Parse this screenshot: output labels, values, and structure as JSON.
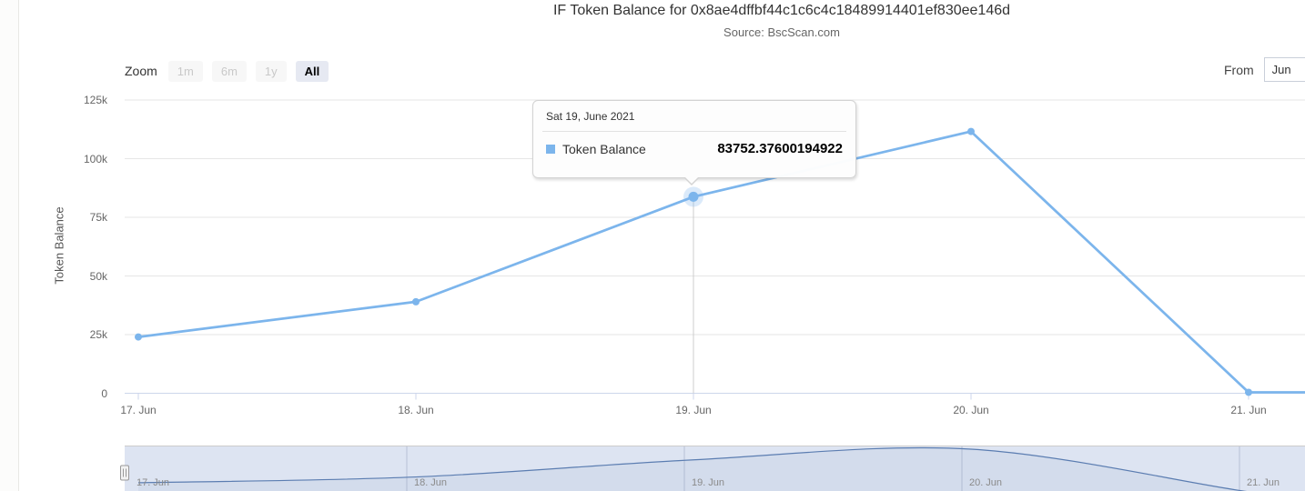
{
  "chart": {
    "title": "IF Token Balance for 0x8ae4dffbf44c1c6c4c18489914401ef830ee146d",
    "subtitle": "Source: BscScan.com",
    "yaxis_title": "Token Balance"
  },
  "range_selector": {
    "zoom_label": "Zoom",
    "buttons": [
      {
        "label": "1m",
        "state": "disabled"
      },
      {
        "label": "6m",
        "state": "disabled"
      },
      {
        "label": "1y",
        "state": "disabled"
      },
      {
        "label": "All",
        "state": "selected"
      }
    ],
    "from_label": "From",
    "from_value": "Jun"
  },
  "tooltip": {
    "header": "Sat 19, June 2021",
    "series_label": "Token Balance",
    "value": "83752.37600194922"
  },
  "chart_data": {
    "type": "line",
    "title": "IF Token Balance for 0x8ae4dffbf44c1c6c4c18489914401ef830ee146d",
    "subtitle": "Source: BscScan.com",
    "xlabel": "",
    "ylabel": "Token Balance",
    "x": [
      "17. Jun",
      "18. Jun",
      "19. Jun",
      "20. Jun",
      "21. Jun"
    ],
    "series": [
      {
        "name": "Token Balance",
        "values": [
          24000,
          39000,
          83752.37600194922,
          111600,
          400
        ]
      }
    ],
    "ylim": [
      0,
      125000
    ],
    "ytick_values": [
      0,
      25000,
      50000,
      75000,
      100000,
      125000
    ],
    "ytick_labels": [
      "0",
      "25k",
      "50k",
      "75k",
      "100k",
      "125k"
    ],
    "grid": true,
    "legend": "none",
    "hover_index": 2,
    "line_extends_to_right_edge": true,
    "navigator": true,
    "colors": {
      "series": "#7cb5ec",
      "hover_halo": "rgba(124,181,236,0.28)",
      "grid": "#e6e6e6",
      "axis_line": "#ccd6eb",
      "crosshair": "#cccccc",
      "navigator_mask": "rgba(102,133,194,0.22)",
      "navigator_line": "#5b7db1",
      "navigator_fill": "rgba(91,125,177,0.07)",
      "navigator_grid": "#b7c0d5",
      "navigator_outline": "#cccccc"
    }
  }
}
